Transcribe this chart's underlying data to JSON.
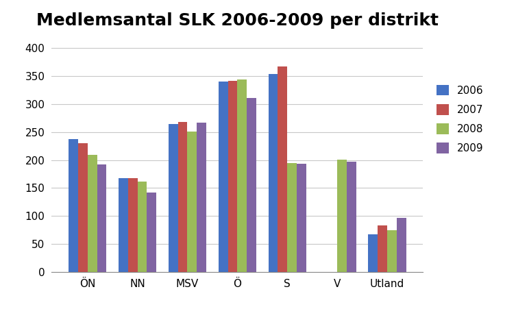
{
  "title": "Medlemsantal SLK 2006-2009 per distrikt",
  "categories": [
    "ÖN",
    "NN",
    "MSV",
    "Ö",
    "S",
    "V",
    "Utland"
  ],
  "years": [
    "2006",
    "2007",
    "2008",
    "2009"
  ],
  "values": {
    "2006": [
      237,
      168,
      265,
      340,
      354,
      0,
      67
    ],
    "2007": [
      230,
      168,
      268,
      342,
      368,
      0,
      83
    ],
    "2008": [
      210,
      161,
      251,
      344,
      195,
      201,
      74
    ],
    "2009": [
      192,
      142,
      267,
      311,
      194,
      197,
      97
    ]
  },
  "colors": {
    "2006": "#4472C4",
    "2007": "#C0504D",
    "2008": "#9BBB59",
    "2009": "#8064A2"
  },
  "ylim": [
    0,
    420
  ],
  "yticks": [
    0,
    50,
    100,
    150,
    200,
    250,
    300,
    350,
    400
  ],
  "background_color": "#ffffff",
  "title_fontsize": 18,
  "legend_fontsize": 11,
  "tick_fontsize": 11,
  "bar_width": 0.19
}
